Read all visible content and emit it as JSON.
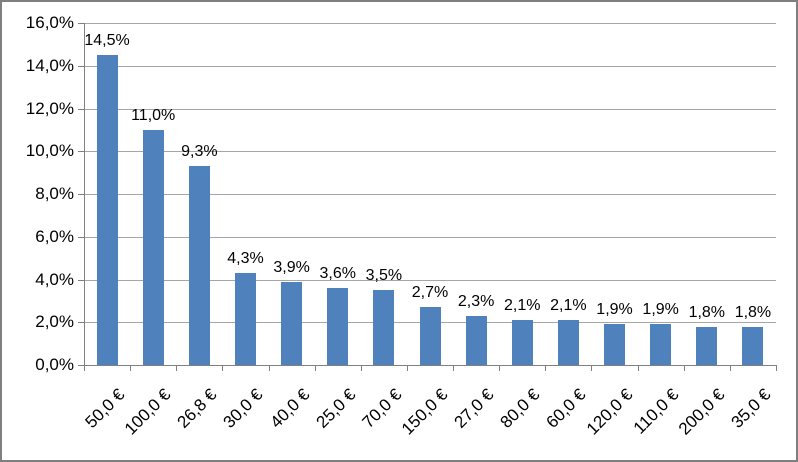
{
  "chart_data": {
    "type": "bar",
    "title": "",
    "categories": [
      "50,0 €",
      "100,0 €",
      "26,8 €",
      "30,0 €",
      "40,0 €",
      "25,0 €",
      "70,0 €",
      "150,0 €",
      "27,0 €",
      "80,0 €",
      "60,0 €",
      "120,0 €",
      "110,0 €",
      "200,0 €",
      "35,0 €"
    ],
    "values": [
      14.5,
      11.0,
      9.3,
      4.3,
      3.9,
      3.6,
      3.5,
      2.7,
      2.3,
      2.1,
      2.1,
      1.9,
      1.9,
      1.8,
      1.8
    ],
    "data_labels": [
      "14,5%",
      "11,0%",
      "9,3%",
      "4,3%",
      "3,9%",
      "3,6%",
      "3,5%",
      "2,7%",
      "2,3%",
      "2,1%",
      "2,1%",
      "1,9%",
      "1,9%",
      "1,8%",
      "1,8%"
    ],
    "xlabel": "",
    "ylabel": "",
    "y_axis": {
      "ticks": [
        "0,0%",
        "2,0%",
        "4,0%",
        "6,0%",
        "8,0%",
        "10,0%",
        "12,0%",
        "14,0%",
        "16,0%"
      ],
      "min": 0,
      "max": 16,
      "step": 2
    },
    "ylim": [
      0,
      16
    ],
    "grid": true,
    "legend_position": "none",
    "colors": {
      "bar": "#4f81bd",
      "gridline": "#a6a6a6",
      "axis": "#808080",
      "frame_border": "#7f7f7f",
      "background": "#ffffff",
      "text": "#000000"
    }
  }
}
